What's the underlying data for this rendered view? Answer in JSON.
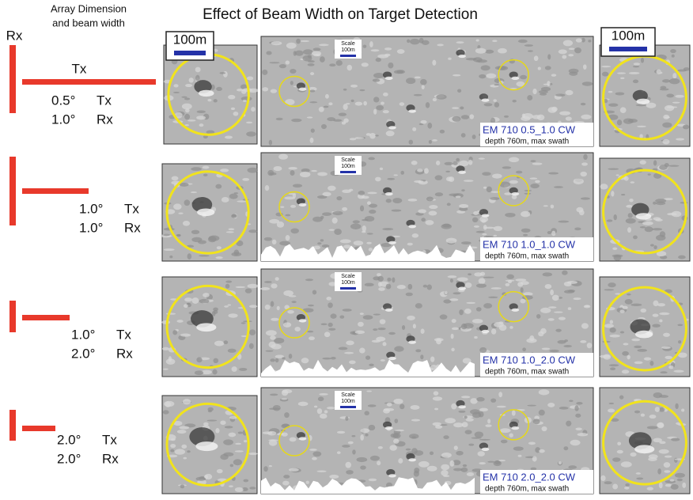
{
  "title": "Effect of Beam Width on Target Detection",
  "header": {
    "rx_label": "Rx",
    "array_label_1": "Array Dimension",
    "array_label_2": "and beam width",
    "tx_label": "Tx"
  },
  "scale_labels": {
    "left": "100m",
    "right": "100m"
  },
  "rows": [
    {
      "tx_angle": "0.5°",
      "tx": "Tx",
      "rx_angle": "1.0°",
      "rx": "Rx",
      "scale_title": "Scale",
      "scale_value": "100m",
      "caption": "EM 710 0.5_1.0 CW",
      "subcaption": "depth 760m, max swath"
    },
    {
      "tx_angle": "1.0°",
      "tx": "Tx",
      "rx_angle": "1.0°",
      "rx": "Rx",
      "scale_title": "Scale",
      "scale_value": "100m",
      "caption": "EM 710 1.0_1.0 CW",
      "subcaption": "depth 760m, max swath"
    },
    {
      "tx_angle": "1.0°",
      "tx": "Tx",
      "rx_angle": "2.0°",
      "rx": "Rx",
      "scale_title": "Scale",
      "scale_value": "100m",
      "caption": "EM 710 1.0_2.0 CW",
      "subcaption": "depth 760m, max swath"
    },
    {
      "tx_angle": "2.0°",
      "tx": "Tx",
      "rx_angle": "2.0°",
      "rx": "Rx",
      "scale_title": "Scale",
      "scale_value": "100m",
      "caption": "EM 710 2.0_2.0 CW",
      "subcaption": "depth 760m, max swath"
    }
  ]
}
